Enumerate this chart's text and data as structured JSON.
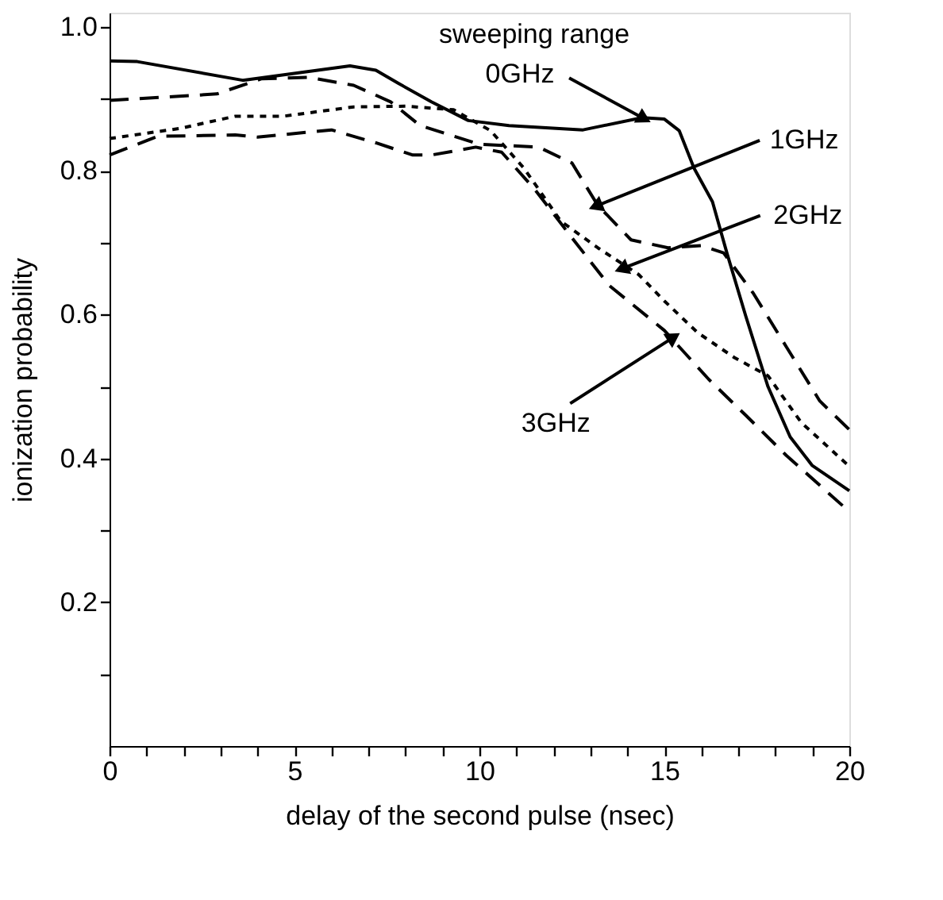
{
  "chart_data": {
    "type": "line",
    "xlabel": "delay of the second pulse (nsec)",
    "ylabel": "ionization probability",
    "xlim": [
      0,
      20
    ],
    "ylim": [
      0,
      1.02
    ],
    "xticks": [
      0,
      {
        "value": 1,
        "label": null
      },
      {
        "value": 2,
        "label": null
      },
      {
        "value": 3,
        "label": null
      },
      {
        "value": 4,
        "label": null
      },
      5,
      {
        "value": 6,
        "label": null
      },
      {
        "value": 7,
        "label": null
      },
      {
        "value": 8,
        "label": null
      },
      {
        "value": 9,
        "label": null
      },
      10,
      {
        "value": 11,
        "label": null
      },
      {
        "value": 12,
        "label": null
      },
      {
        "value": 13,
        "label": null
      },
      {
        "value": 14,
        "label": null
      },
      15,
      {
        "value": 16,
        "label": null
      },
      {
        "value": 17,
        "label": null
      },
      {
        "value": 18,
        "label": null
      },
      {
        "value": 19,
        "label": null
      },
      20
    ],
    "yticks": [
      {
        "value": 0.1,
        "label": null
      },
      0.2,
      {
        "value": 0.3,
        "label": null
      },
      0.4,
      {
        "value": 0.5,
        "label": null
      },
      0.6,
      {
        "value": 0.7,
        "label": null
      },
      0.8,
      {
        "value": 0.9,
        "label": null
      },
      {
        "value": 1.0,
        "label": "1.0"
      }
    ],
    "grid": false,
    "marker": "none",
    "series": [
      {
        "color": "#000000",
        "line_style": "solid",
        "x": [
          0,
          0.75,
          3.6,
          6.5,
          7.2,
          7.8,
          8.7,
          9.7,
          10.8,
          12.8,
          14.4,
          15.0,
          15.4,
          15.8,
          16.3,
          16.7,
          17.2,
          17.8,
          18.4,
          19.0,
          20
        ],
        "values": [
          0.953,
          0.952,
          0.926,
          0.946,
          0.94,
          0.922,
          0.896,
          0.87,
          0.863,
          0.857,
          0.874,
          0.872,
          0.856,
          0.804,
          0.757,
          0.684,
          0.598,
          0.5,
          0.43,
          0.39,
          0.355
        ]
      },
      {
        "color": "#000000",
        "line_style": "dashed",
        "x": [
          0,
          2.9,
          4.1,
          5.4,
          6.6,
          7.6,
          8.3,
          8.4,
          10,
          11.6,
          12.5,
          13.2,
          14.1,
          15.1,
          16.0,
          16.6,
          17.4,
          18.3,
          19.2,
          20
        ],
        "values": [
          0.898,
          0.907,
          0.928,
          0.93,
          0.919,
          0.896,
          0.867,
          0.863,
          0.837,
          0.833,
          0.811,
          0.752,
          0.704,
          0.693,
          0.696,
          0.686,
          0.63,
          0.555,
          0.48,
          0.44
        ]
      },
      {
        "color": "#000000",
        "line_style": "dotted",
        "x": [
          0,
          1.9,
          3.4,
          4.7,
          6.6,
          8.0,
          9.3,
          10.3,
          11.2,
          12.2,
          13.2,
          14.3,
          15.0,
          15.9,
          16.9,
          17.8,
          18.7,
          20
        ],
        "values": [
          0.845,
          0.859,
          0.876,
          0.876,
          0.889,
          0.89,
          0.885,
          0.856,
          0.804,
          0.73,
          0.693,
          0.656,
          0.619,
          0.575,
          0.54,
          0.515,
          0.45,
          0.389
        ]
      },
      {
        "color": "#000000",
        "line_style": "dashed",
        "x": [
          0,
          1.3,
          3.4,
          4.0,
          6.0,
          7.2,
          8.2,
          8.7,
          9.9,
          10.6,
          11.5,
          12.5,
          13.5,
          15.0,
          16.2,
          17.2,
          18.3,
          20
        ],
        "values": [
          0.822,
          0.848,
          0.85,
          0.847,
          0.857,
          0.839,
          0.822,
          0.822,
          0.833,
          0.826,
          0.774,
          0.707,
          0.641,
          0.578,
          0.51,
          0.46,
          0.404,
          0.326
        ]
      }
    ],
    "annotations": [
      "sweeping range",
      {
        "text": "0GHz",
        "x": 14.4,
        "y": 0.874
      },
      {
        "text": "1GHz",
        "x": 13.2,
        "y": 0.752
      },
      {
        "text": "2GHz",
        "x": 13.9,
        "y": 0.665
      },
      {
        "text": "3GHz",
        "x": 15.2,
        "y": 0.567
      }
    ]
  }
}
